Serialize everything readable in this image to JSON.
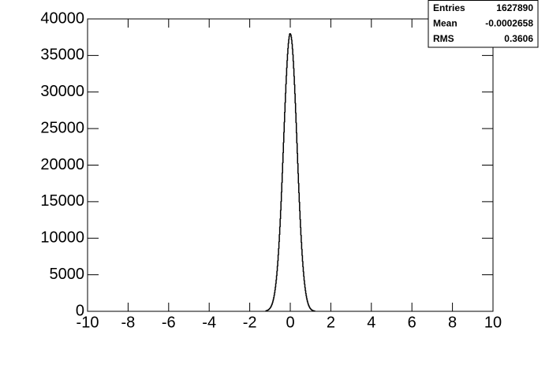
{
  "chart_data": {
    "type": "histogram",
    "bins": [
      -1.2,
      -1.18,
      -1.16,
      -1.14,
      -1.12,
      -1.1,
      -1.08,
      -1.06,
      -1.04,
      -1.02,
      -1,
      -0.98,
      -0.96,
      -0.94,
      -0.92,
      -0.9,
      -0.88,
      -0.86,
      -0.84,
      -0.82,
      -0.8,
      -0.78,
      -0.76,
      -0.74,
      -0.72,
      -0.7,
      -0.68,
      -0.66,
      -0.64,
      -0.62,
      -0.6,
      -0.58,
      -0.56,
      -0.54,
      -0.52,
      -0.5,
      -0.48,
      -0.46,
      -0.44,
      -0.42,
      -0.4,
      -0.38,
      -0.36,
      -0.34,
      -0.32,
      -0.3,
      -0.28,
      -0.26,
      -0.24,
      -0.22,
      -0.2,
      -0.18,
      -0.16,
      -0.14,
      -0.12,
      -0.1,
      -0.08,
      -0.06,
      -0.04,
      -0.02,
      0,
      0.02,
      0.04,
      0.06,
      0.08,
      0.1,
      0.12,
      0.14,
      0.16,
      0.18,
      0.2,
      0.22,
      0.24,
      0.26,
      0.28,
      0.3,
      0.32,
      0.34,
      0.36,
      0.38,
      0.4,
      0.42,
      0.44,
      0.46,
      0.48,
      0.5,
      0.52,
      0.54,
      0.56,
      0.58,
      0.6,
      0.62,
      0.64,
      0.66,
      0.68,
      0.7,
      0.72,
      0.74,
      0.76,
      0.78,
      0.8,
      0.82,
      0.84,
      0.86,
      0.88,
      0.9,
      0.92,
      0.94,
      0.96,
      0.98,
      1,
      1.02,
      1.04,
      1.06,
      1.08,
      1.1,
      1.12,
      1.14,
      1.16,
      1.18,
      1.2
    ],
    "values": [
      57,
      71,
      88,
      108,
      133,
      162,
      197,
      240,
      290,
      350,
      421,
      504,
      601,
      714,
      846,
      998,
      1173,
      1374,
      1603,
      1863,
      2159,
      2492,
      2866,
      3283,
      3748,
      4263,
      4829,
      5452,
      6136,
      6876,
      7683,
      8545,
      9473,
      10462,
      11510,
      12617,
      13780,
      14993,
      16255,
      17559,
      18898,
      20265,
      21652,
      23048,
      24445,
      25830,
      27191,
      28520,
      29806,
      31035,
      32197,
      33278,
      34270,
      35162,
      35946,
      36613,
      37155,
      37566,
      37843,
      37983,
      37983,
      37843,
      37566,
      37155,
      36613,
      35946,
      35162,
      34270,
      33278,
      32197,
      31035,
      29806,
      28520,
      27191,
      25830,
      24445,
      23048,
      21652,
      20265,
      18898,
      17559,
      16255,
      14993,
      13780,
      12617,
      11510,
      10462,
      9473,
      8545,
      7683,
      6876,
      6136,
      5452,
      4829,
      4263,
      3748,
      3283,
      2866,
      2492,
      2159,
      1863,
      1603,
      1374,
      1173,
      998,
      846,
      714,
      601,
      504,
      421,
      350,
      290,
      240,
      197,
      162,
      133,
      108,
      88,
      71,
      57
    ],
    "color": "#000000",
    "xlim": [
      -10,
      10
    ],
    "xticks": [
      -10,
      -8,
      -6,
      -4,
      -2,
      0,
      2,
      4,
      6,
      8,
      10
    ],
    "ylim": [
      0,
      40000
    ],
    "yticks": [
      0,
      5000,
      10000,
      15000,
      20000,
      25000,
      30000,
      35000,
      40000
    ],
    "stats": [
      {
        "label": "Entries",
        "value": 1627890
      },
      {
        "label": "Mean",
        "value": -0.0002658
      },
      {
        "label": "RMS",
        "value": 0.3606
      }
    ]
  }
}
